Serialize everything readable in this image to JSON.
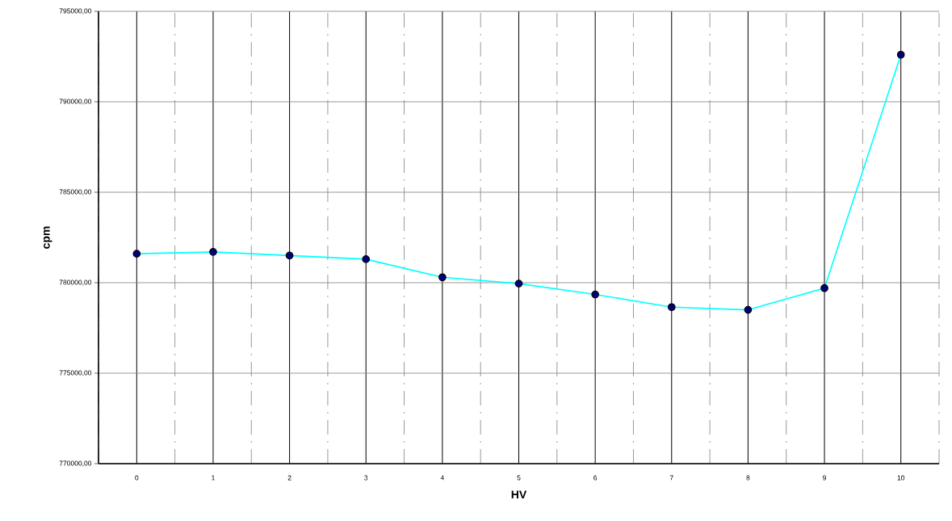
{
  "chart_data": {
    "type": "line",
    "xlabel": "HV",
    "ylabel": "cpm",
    "categories": [
      "0",
      "1",
      "2",
      "3",
      "4",
      "5",
      "6",
      "7",
      "8",
      "9",
      "10"
    ],
    "series": [
      {
        "color": "#00ffff",
        "values": [
          781600,
          781700,
          781500,
          781300,
          780300,
          779950,
          779350,
          778650,
          778500,
          779700,
          792600
        ]
      }
    ],
    "ylim": [
      770000,
      795000
    ],
    "yticks": [
      {
        "value": 770000,
        "label": "770000,00"
      },
      {
        "value": 775000,
        "label": "775000,00"
      },
      {
        "value": 780000,
        "label": "780000,00"
      },
      {
        "value": 785000,
        "label": "785000,00"
      },
      {
        "value": 790000,
        "label": "790000,00"
      },
      {
        "value": 795000,
        "label": "795000,00"
      }
    ],
    "grid": true,
    "marker": "circle",
    "line_style": "solid"
  }
}
